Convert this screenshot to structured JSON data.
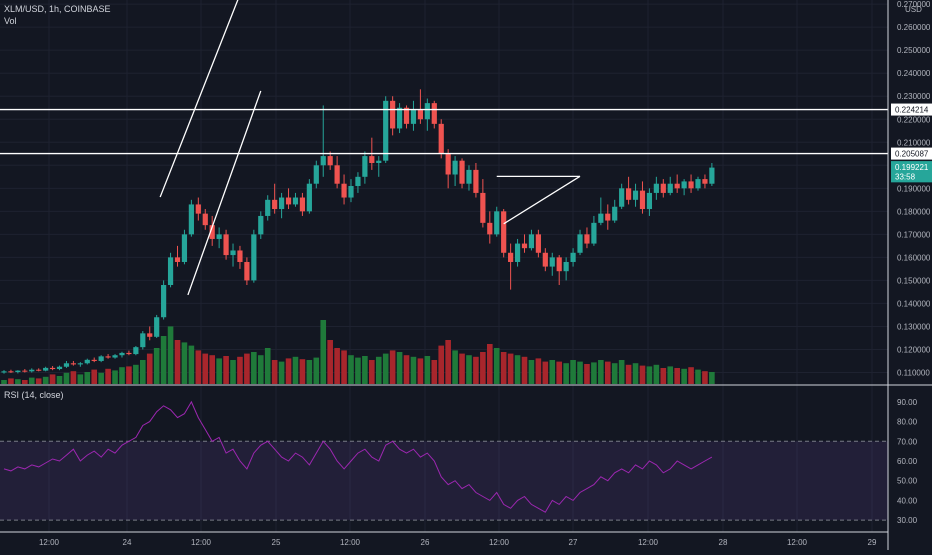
{
  "header": {
    "symbol": "XLM/USD, 1h, COINBASE",
    "volume_label": "Vol",
    "rsi_label": "RSI (14, close)",
    "currency": "USD"
  },
  "price_axis": {
    "ticks": [
      "0.270000",
      "0.260000",
      "0.250000",
      "0.240000",
      "0.230000",
      "0.220000",
      "0.210000",
      "0.200000",
      "0.190000",
      "0.180000",
      "0.170000",
      "0.160000",
      "0.150000",
      "0.140000",
      "0.130000",
      "0.120000",
      "0.110000"
    ],
    "markers": [
      {
        "label": "0.224214",
        "value": 0.224214,
        "bg": "#ffffff",
        "fg": "#131722"
      },
      {
        "label": "0.205087",
        "value": 0.205087,
        "bg": "#ffffff",
        "fg": "#131722"
      },
      {
        "label": "0.199221",
        "value": 0.199221,
        "bg": "#26a69a",
        "fg": "#ffffff"
      },
      {
        "label": "33:58",
        "value": 0.1952,
        "bg": "#26a69a",
        "fg": "#ffffff"
      }
    ]
  },
  "rsi_axis": {
    "ticks": [
      "90.00",
      "80.00",
      "70.00",
      "60.00",
      "50.00",
      "40.00",
      "30.00"
    ],
    "upper_band": 70,
    "lower_band": 30
  },
  "time_axis": {
    "ticks": [
      "12:00",
      "24",
      "12:00",
      "25",
      "12:00",
      "26",
      "12:00",
      "27",
      "12:00",
      "28",
      "12:00",
      "29"
    ]
  },
  "colors": {
    "background": "#131722",
    "up": "#26a69a",
    "down": "#ef5350",
    "volume_up": "#1f7a3a",
    "volume_down": "#a8262c",
    "rsi_line": "#9c27b0",
    "rsi_band": "#7e57c2",
    "drawing": "#ffffff",
    "axis_text": "#b2b5be"
  },
  "chart_data": [
    {
      "type": "candlestick",
      "title": "XLM/USD, 1h, COINBASE",
      "x_range": [
        "23 00:00",
        "29 12:00"
      ],
      "ylim": [
        0.105,
        0.272
      ],
      "horizontal_levels": [
        0.224214,
        0.205087
      ],
      "trend_lines": [
        {
          "x": [
            22.5,
            34.0
          ],
          "y": [
            0.1862,
            0.2742
          ]
        },
        {
          "x": [
            26.5,
            37.0
          ],
          "y": [
            0.1437,
            0.2323
          ]
        },
        {
          "x": [
            71.0,
            83.0
          ],
          "y": [
            0.1952,
            0.1952
          ]
        },
        {
          "x": [
            72.0,
            83.0
          ],
          "y": [
            0.1746,
            0.1952
          ]
        }
      ],
      "ohlc": [
        [
          0.11,
          0.111,
          0.1095,
          0.1105
        ],
        [
          0.1105,
          0.1112,
          0.1098,
          0.1102
        ],
        [
          0.1102,
          0.111,
          0.1096,
          0.1108
        ],
        [
          0.1108,
          0.1115,
          0.11,
          0.1105
        ],
        [
          0.1105,
          0.1118,
          0.11,
          0.1112
        ],
        [
          0.1112,
          0.1118,
          0.1105,
          0.1108
        ],
        [
          0.1108,
          0.1125,
          0.1105,
          0.112
        ],
        [
          0.112,
          0.1128,
          0.111,
          0.1115
        ],
        [
          0.1115,
          0.113,
          0.111,
          0.1125
        ],
        [
          0.1125,
          0.115,
          0.112,
          0.114
        ],
        [
          0.114,
          0.115,
          0.113,
          0.1135
        ],
        [
          0.1135,
          0.1145,
          0.1125,
          0.114
        ],
        [
          0.114,
          0.116,
          0.1135,
          0.1155
        ],
        [
          0.1155,
          0.1165,
          0.1145,
          0.115
        ],
        [
          0.115,
          0.1175,
          0.1145,
          0.117
        ],
        [
          0.117,
          0.118,
          0.116,
          0.1165
        ],
        [
          0.1165,
          0.118,
          0.116,
          0.1175
        ],
        [
          0.1175,
          0.119,
          0.1165,
          0.1185
        ],
        [
          0.1185,
          0.1195,
          0.1175,
          0.118
        ],
        [
          0.118,
          0.1215,
          0.1175,
          0.121
        ],
        [
          0.121,
          0.128,
          0.12,
          0.127
        ],
        [
          0.127,
          0.13,
          0.124,
          0.1255
        ],
        [
          0.1255,
          0.135,
          0.125,
          0.134
        ],
        [
          0.134,
          0.15,
          0.133,
          0.148
        ],
        [
          0.148,
          0.162,
          0.147,
          0.16
        ],
        [
          0.16,
          0.165,
          0.156,
          0.158
        ],
        [
          0.158,
          0.172,
          0.157,
          0.17
        ],
        [
          0.17,
          0.185,
          0.169,
          0.183
        ],
        [
          0.183,
          0.186,
          0.176,
          0.179
        ],
        [
          0.179,
          0.181,
          0.172,
          0.174
        ],
        [
          0.174,
          0.178,
          0.165,
          0.168
        ],
        [
          0.168,
          0.173,
          0.164,
          0.17
        ],
        [
          0.17,
          0.172,
          0.159,
          0.161
        ],
        [
          0.161,
          0.166,
          0.156,
          0.163
        ],
        [
          0.163,
          0.165,
          0.155,
          0.158
        ],
        [
          0.158,
          0.16,
          0.148,
          0.15
        ],
        [
          0.15,
          0.172,
          0.149,
          0.17
        ],
        [
          0.17,
          0.18,
          0.168,
          0.178
        ],
        [
          0.178,
          0.187,
          0.176,
          0.185
        ],
        [
          0.185,
          0.192,
          0.179,
          0.181
        ],
        [
          0.181,
          0.188,
          0.177,
          0.186
        ],
        [
          0.186,
          0.19,
          0.181,
          0.183
        ],
        [
          0.183,
          0.188,
          0.182,
          0.186
        ],
        [
          0.186,
          0.188,
          0.178,
          0.18
        ],
        [
          0.18,
          0.194,
          0.179,
          0.192
        ],
        [
          0.192,
          0.202,
          0.19,
          0.2
        ],
        [
          0.2,
          0.226,
          0.195,
          0.204
        ],
        [
          0.204,
          0.206,
          0.198,
          0.2
        ],
        [
          0.2,
          0.204,
          0.19,
          0.192
        ],
        [
          0.192,
          0.196,
          0.183,
          0.186
        ],
        [
          0.186,
          0.194,
          0.184,
          0.191
        ],
        [
          0.191,
          0.197,
          0.188,
          0.195
        ],
        [
          0.195,
          0.206,
          0.192,
          0.204
        ],
        [
          0.204,
          0.212,
          0.198,
          0.201
        ],
        [
          0.201,
          0.204,
          0.195,
          0.202
        ],
        [
          0.202,
          0.23,
          0.201,
          0.228
        ],
        [
          0.228,
          0.23,
          0.213,
          0.216
        ],
        [
          0.216,
          0.227,
          0.214,
          0.225
        ],
        [
          0.225,
          0.226,
          0.216,
          0.218
        ],
        [
          0.218,
          0.228,
          0.215,
          0.224
        ],
        [
          0.224,
          0.233,
          0.218,
          0.22
        ],
        [
          0.22,
          0.229,
          0.215,
          0.227
        ],
        [
          0.227,
          0.228,
          0.216,
          0.218
        ],
        [
          0.218,
          0.22,
          0.203,
          0.205
        ],
        [
          0.205,
          0.207,
          0.19,
          0.196
        ],
        [
          0.196,
          0.204,
          0.191,
          0.202
        ],
        [
          0.202,
          0.203,
          0.19,
          0.192
        ],
        [
          0.192,
          0.2,
          0.189,
          0.198
        ],
        [
          0.198,
          0.201,
          0.186,
          0.188
        ],
        [
          0.188,
          0.194,
          0.173,
          0.175
        ],
        [
          0.175,
          0.18,
          0.166,
          0.17
        ],
        [
          0.17,
          0.182,
          0.169,
          0.18
        ],
        [
          0.18,
          0.181,
          0.16,
          0.162
        ],
        [
          0.162,
          0.166,
          0.146,
          0.158
        ],
        [
          0.158,
          0.168,
          0.156,
          0.166
        ],
        [
          0.166,
          0.17,
          0.162,
          0.164
        ],
        [
          0.164,
          0.172,
          0.163,
          0.17
        ],
        [
          0.17,
          0.172,
          0.16,
          0.162
        ],
        [
          0.162,
          0.164,
          0.154,
          0.156
        ],
        [
          0.156,
          0.162,
          0.152,
          0.16
        ],
        [
          0.16,
          0.161,
          0.148,
          0.154
        ],
        [
          0.154,
          0.16,
          0.15,
          0.158
        ],
        [
          0.158,
          0.164,
          0.156,
          0.162
        ],
        [
          0.162,
          0.172,
          0.161,
          0.17
        ],
        [
          0.17,
          0.173,
          0.164,
          0.166
        ],
        [
          0.166,
          0.178,
          0.165,
          0.175
        ],
        [
          0.175,
          0.186,
          0.174,
          0.179
        ],
        [
          0.179,
          0.183,
          0.172,
          0.176
        ],
        [
          0.176,
          0.185,
          0.175,
          0.182
        ],
        [
          0.182,
          0.192,
          0.181,
          0.19
        ],
        [
          0.19,
          0.195,
          0.183,
          0.185
        ],
        [
          0.185,
          0.192,
          0.182,
          0.189
        ],
        [
          0.189,
          0.193,
          0.179,
          0.181
        ],
        [
          0.181,
          0.19,
          0.178,
          0.188
        ],
        [
          0.188,
          0.195,
          0.185,
          0.192
        ],
        [
          0.192,
          0.194,
          0.186,
          0.188
        ],
        [
          0.188,
          0.195,
          0.187,
          0.192
        ],
        [
          0.192,
          0.196,
          0.188,
          0.19
        ],
        [
          0.19,
          0.194,
          0.187,
          0.193
        ],
        [
          0.193,
          0.196,
          0.188,
          0.19
        ],
        [
          0.19,
          0.195,
          0.189,
          0.194
        ],
        [
          0.194,
          0.196,
          0.19,
          0.192
        ],
        [
          0.192,
          0.201,
          0.191,
          0.199
        ]
      ],
      "volume": [
        0.05,
        0.07,
        0.06,
        0.05,
        0.08,
        0.07,
        0.09,
        0.12,
        0.1,
        0.14,
        0.16,
        0.12,
        0.15,
        0.18,
        0.14,
        0.19,
        0.17,
        0.21,
        0.22,
        0.24,
        0.3,
        0.38,
        0.45,
        0.6,
        0.72,
        0.55,
        0.52,
        0.48,
        0.42,
        0.38,
        0.36,
        0.32,
        0.35,
        0.3,
        0.34,
        0.38,
        0.4,
        0.36,
        0.45,
        0.3,
        0.28,
        0.32,
        0.34,
        0.31,
        0.3,
        0.33,
        0.8,
        0.55,
        0.45,
        0.42,
        0.36,
        0.33,
        0.35,
        0.3,
        0.34,
        0.38,
        0.42,
        0.4,
        0.36,
        0.34,
        0.32,
        0.35,
        0.3,
        0.48,
        0.55,
        0.42,
        0.38,
        0.36,
        0.34,
        0.4,
        0.5,
        0.45,
        0.4,
        0.38,
        0.36,
        0.34,
        0.3,
        0.32,
        0.28,
        0.3,
        0.28,
        0.26,
        0.3,
        0.28,
        0.25,
        0.27,
        0.3,
        0.28,
        0.26,
        0.3,
        0.24,
        0.26,
        0.23,
        0.22,
        0.24,
        0.2,
        0.22,
        0.2,
        0.19,
        0.21,
        0.18,
        0.16,
        0.15
      ],
      "volume_scale_note": "relative"
    },
    {
      "type": "line",
      "title": "RSI (14, close)",
      "ylim": [
        25,
        95
      ],
      "levels": [
        70,
        30
      ],
      "values": [
        56,
        55,
        57,
        56,
        58,
        57,
        59,
        61,
        60,
        63,
        66,
        60,
        63,
        65,
        62,
        66,
        64,
        68,
        70,
        72,
        78,
        80,
        85,
        88,
        86,
        82,
        84,
        90,
        82,
        76,
        70,
        72,
        64,
        66,
        60,
        56,
        64,
        68,
        70,
        66,
        62,
        60,
        64,
        62,
        58,
        64,
        70,
        66,
        60,
        56,
        60,
        64,
        66,
        62,
        60,
        68,
        70,
        66,
        64,
        66,
        62,
        64,
        60,
        52,
        48,
        50,
        46,
        48,
        44,
        42,
        40,
        44,
        38,
        36,
        40,
        42,
        38,
        36,
        34,
        40,
        38,
        42,
        40,
        44,
        46,
        48,
        52,
        50,
        54,
        56,
        54,
        58,
        56,
        60,
        58,
        54,
        56,
        60,
        58,
        56,
        58,
        60,
        62
      ]
    }
  ]
}
